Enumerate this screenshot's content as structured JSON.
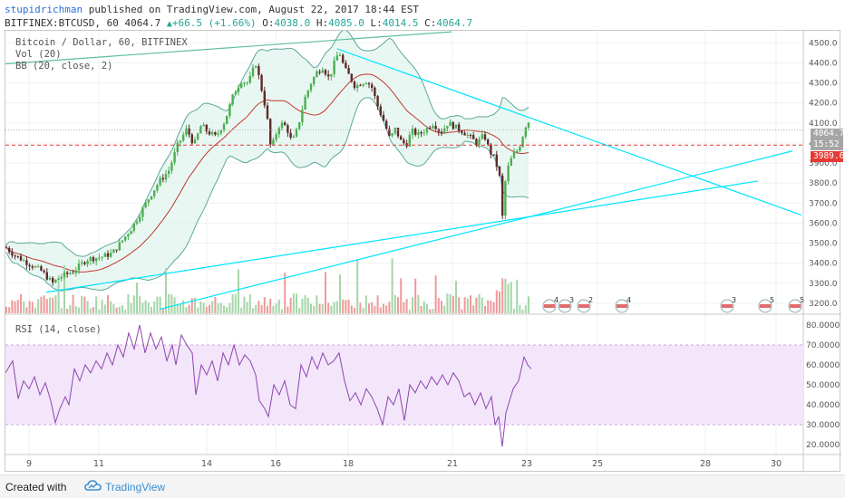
{
  "header": {
    "user": "stupidrichman",
    "published_text": "published on TradingView.com, August 22, 2017 18:44 EST",
    "symbol": "BITFINEX:BTCUSD, 60",
    "last": "4064.7",
    "change_icon": "triangle-up-icon",
    "change": "+66.5 (+1.66%)",
    "o_label": "O:",
    "o_value": "4038.0",
    "h_label": "H:",
    "h_value": "4085.0",
    "l_label": "L:",
    "l_value": "4014.5",
    "c_label": "C:",
    "c_value": "4064.7"
  },
  "legend": {
    "title": "Bitcoin / Dollar, 60, BITFINEX",
    "vol": "Vol (20)",
    "bb": "BB (20, close, 2)",
    "rsi": "RSI (14, close)"
  },
  "price_labels": {
    "last": "4064.7",
    "countdown": "15:52",
    "marker": "3989.6"
  },
  "colors": {
    "up": "#4caf50",
    "down": "#5d2a2a",
    "trendline": "#00e5ff",
    "upper_line": "#5fbf9f",
    "bb_fill": "#dff3ee",
    "rsi_line": "#8e44ad",
    "rsi_band": "#f3e6fb",
    "marker": "#e53935",
    "brand": "#3a8ed0"
  },
  "footer": {
    "created": "Created with",
    "brand": "TradingView",
    "logo_icon": "tradingview-cloud-icon"
  },
  "event_flags": [
    "4",
    "3",
    "2",
    "4",
    "3",
    "5",
    "5"
  ],
  "chart_data": {
    "type": "candlestick",
    "symbol": "BTCUSD",
    "x_tick_labels": [
      "9",
      "11",
      "14",
      "16",
      "18",
      "21",
      "23",
      "25",
      "28",
      "30"
    ],
    "price_axis": {
      "ticks": [
        "4500.0",
        "4400.0",
        "4300.0",
        "4200.0",
        "4100.0",
        "4000.0",
        "3900.0",
        "3800.0",
        "3700.0",
        "3600.0",
        "3500.0",
        "3400.0",
        "3300.0",
        "3200.0"
      ],
      "range": [
        3150,
        4560
      ]
    },
    "rsi_axis": {
      "ticks": [
        "80.0000",
        "70.0000",
        "60.0000",
        "50.0000",
        "40.0000",
        "30.0000",
        "20.0000"
      ],
      "range": [
        15,
        85
      ],
      "band": [
        30,
        70
      ]
    },
    "close_series": [
      [
        0,
        3480
      ],
      [
        10,
        3440
      ],
      [
        25,
        3400
      ],
      [
        40,
        3360
      ],
      [
        52,
        3300
      ],
      [
        60,
        3330
      ],
      [
        75,
        3360
      ],
      [
        90,
        3420
      ],
      [
        105,
        3430
      ],
      [
        118,
        3450
      ],
      [
        130,
        3520
      ],
      [
        140,
        3580
      ],
      [
        150,
        3660
      ],
      [
        160,
        3740
      ],
      [
        170,
        3810
      ],
      [
        180,
        3860
      ],
      [
        190,
        3990
      ],
      [
        200,
        4070
      ],
      [
        208,
        3990
      ],
      [
        216,
        4090
      ],
      [
        222,
        4060
      ],
      [
        232,
        4030
      ],
      [
        242,
        4110
      ],
      [
        252,
        4250
      ],
      [
        260,
        4310
      ],
      [
        268,
        4300
      ],
      [
        276,
        4400
      ],
      [
        282,
        4280
      ],
      [
        288,
        4150
      ],
      [
        293,
        3960
      ],
      [
        297,
        4030
      ],
      [
        303,
        4100
      ],
      [
        310,
        4080
      ],
      [
        316,
        4000
      ],
      [
        322,
        4070
      ],
      [
        330,
        4220
      ],
      [
        337,
        4300
      ],
      [
        343,
        4350
      ],
      [
        350,
        4380
      ],
      [
        357,
        4320
      ],
      [
        362,
        4390
      ],
      [
        368,
        4460
      ],
      [
        374,
        4370
      ],
      [
        380,
        4330
      ],
      [
        386,
        4280
      ],
      [
        392,
        4300
      ],
      [
        398,
        4310
      ],
      [
        404,
        4280
      ],
      [
        410,
        4190
      ],
      [
        418,
        4100
      ],
      [
        424,
        4020
      ],
      [
        430,
        4070
      ],
      [
        436,
        4010
      ],
      [
        442,
        3990
      ],
      [
        448,
        4060
      ],
      [
        456,
        4040
      ],
      [
        464,
        4070
      ],
      [
        472,
        4100
      ],
      [
        480,
        4050
      ],
      [
        488,
        4100
      ],
      [
        496,
        4080
      ],
      [
        504,
        4060
      ],
      [
        512,
        4030
      ],
      [
        520,
        4000
      ],
      [
        528,
        4040
      ],
      [
        534,
        3960
      ],
      [
        540,
        3920
      ],
      [
        545,
        3830
      ],
      [
        548,
        3620
      ],
      [
        552,
        3840
      ],
      [
        556,
        3900
      ],
      [
        560,
        3940
      ],
      [
        566,
        3970
      ],
      [
        572,
        4060
      ],
      [
        576,
        4120
      ],
      [
        580,
        4065
      ]
    ],
    "rsi_series": [
      [
        0,
        56
      ],
      [
        8,
        62
      ],
      [
        14,
        43
      ],
      [
        20,
        52
      ],
      [
        26,
        48
      ],
      [
        32,
        54
      ],
      [
        38,
        45
      ],
      [
        44,
        51
      ],
      [
        50,
        42
      ],
      [
        55,
        31
      ],
      [
        60,
        38
      ],
      [
        66,
        44
      ],
      [
        70,
        40
      ],
      [
        76,
        58
      ],
      [
        82,
        52
      ],
      [
        88,
        60
      ],
      [
        94,
        56
      ],
      [
        100,
        62
      ],
      [
        106,
        58
      ],
      [
        112,
        66
      ],
      [
        118,
        60
      ],
      [
        124,
        70
      ],
      [
        130,
        64
      ],
      [
        136,
        76
      ],
      [
        142,
        68
      ],
      [
        148,
        80
      ],
      [
        154,
        66
      ],
      [
        160,
        76
      ],
      [
        166,
        68
      ],
      [
        172,
        74
      ],
      [
        178,
        62
      ],
      [
        184,
        70
      ],
      [
        188,
        60
      ],
      [
        194,
        75
      ],
      [
        200,
        70
      ],
      [
        206,
        66
      ],
      [
        210,
        45
      ],
      [
        216,
        60
      ],
      [
        222,
        55
      ],
      [
        228,
        62
      ],
      [
        234,
        52
      ],
      [
        240,
        66
      ],
      [
        246,
        60
      ],
      [
        252,
        70
      ],
      [
        258,
        60
      ],
      [
        264,
        65
      ],
      [
        270,
        62
      ],
      [
        276,
        55
      ],
      [
        280,
        42
      ],
      [
        286,
        38
      ],
      [
        290,
        34
      ],
      [
        296,
        50
      ],
      [
        302,
        45
      ],
      [
        308,
        52
      ],
      [
        314,
        40
      ],
      [
        320,
        38
      ],
      [
        326,
        60
      ],
      [
        332,
        54
      ],
      [
        338,
        64
      ],
      [
        344,
        58
      ],
      [
        350,
        66
      ],
      [
        356,
        60
      ],
      [
        362,
        62
      ],
      [
        368,
        66
      ],
      [
        374,
        52
      ],
      [
        380,
        42
      ],
      [
        386,
        46
      ],
      [
        392,
        40
      ],
      [
        398,
        48
      ],
      [
        404,
        44
      ],
      [
        410,
        38
      ],
      [
        416,
        30
      ],
      [
        422,
        44
      ],
      [
        428,
        40
      ],
      [
        434,
        48
      ],
      [
        440,
        32
      ],
      [
        446,
        50
      ],
      [
        452,
        46
      ],
      [
        458,
        52
      ],
      [
        464,
        48
      ],
      [
        470,
        54
      ],
      [
        476,
        50
      ],
      [
        482,
        55
      ],
      [
        488,
        50
      ],
      [
        494,
        56
      ],
      [
        500,
        52
      ],
      [
        506,
        44
      ],
      [
        512,
        46
      ],
      [
        518,
        40
      ],
      [
        524,
        46
      ],
      [
        530,
        38
      ],
      [
        536,
        44
      ],
      [
        540,
        30
      ],
      [
        544,
        34
      ],
      [
        548,
        19
      ],
      [
        552,
        36
      ],
      [
        556,
        42
      ],
      [
        560,
        48
      ],
      [
        566,
        52
      ],
      [
        572,
        64
      ],
      [
        576,
        60
      ],
      [
        580,
        58
      ]
    ]
  }
}
